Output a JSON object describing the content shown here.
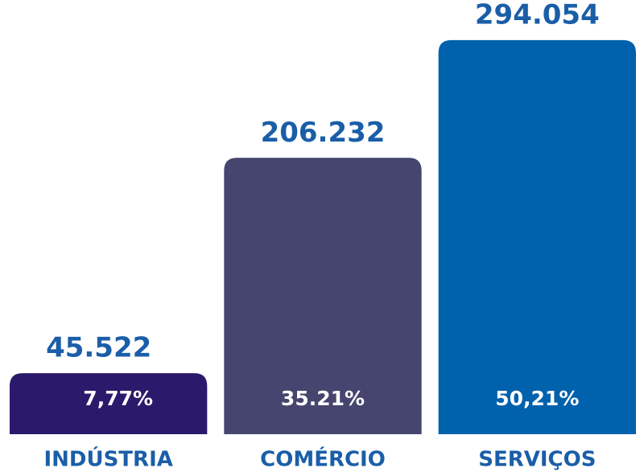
{
  "chart_data": {
    "type": "bar",
    "categories": [
      "INDÚSTRIA",
      "COMÉRCIO",
      "SERVIÇOS"
    ],
    "values": [
      45522,
      206232,
      294054
    ],
    "value_labels": [
      "45.522",
      "206.232",
      "294.054"
    ],
    "percent_values": [
      7.77,
      35.21,
      50.21
    ],
    "percent_labels": [
      "7,77%",
      "35.21%",
      "50,21%"
    ],
    "colors": [
      "#2b1a6b",
      "#45456f",
      "#0061ad"
    ],
    "label_color": "#1a5ea8",
    "ylim": [
      0,
      300000
    ]
  }
}
